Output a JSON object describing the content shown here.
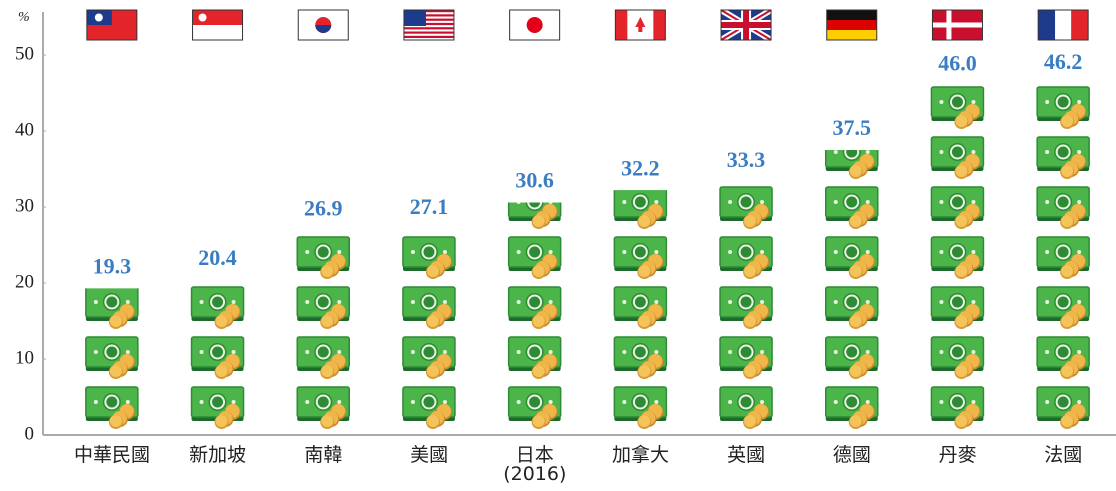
{
  "chart_data": {
    "type": "pictograph",
    "y_unit": "%",
    "categories": [
      "中華民國",
      "新加坡",
      "南韓",
      "美國",
      "日本\n(2016)",
      "加拿大",
      "英國",
      "德國",
      "丹麥",
      "法國"
    ],
    "values": [
      19.3,
      20.4,
      26.9,
      27.1,
      30.6,
      32.2,
      33.3,
      37.5,
      46.0,
      46.2
    ],
    "value_labels": [
      "19.3",
      "20.4",
      "26.9",
      "27.1",
      "30.6",
      "32.2",
      "33.3",
      "37.5",
      "46.0",
      "46.2"
    ],
    "ylim": [
      0,
      50
    ],
    "yticks": [
      0,
      10,
      20,
      30,
      40,
      50
    ],
    "color": "#3a7dc2"
  }
}
